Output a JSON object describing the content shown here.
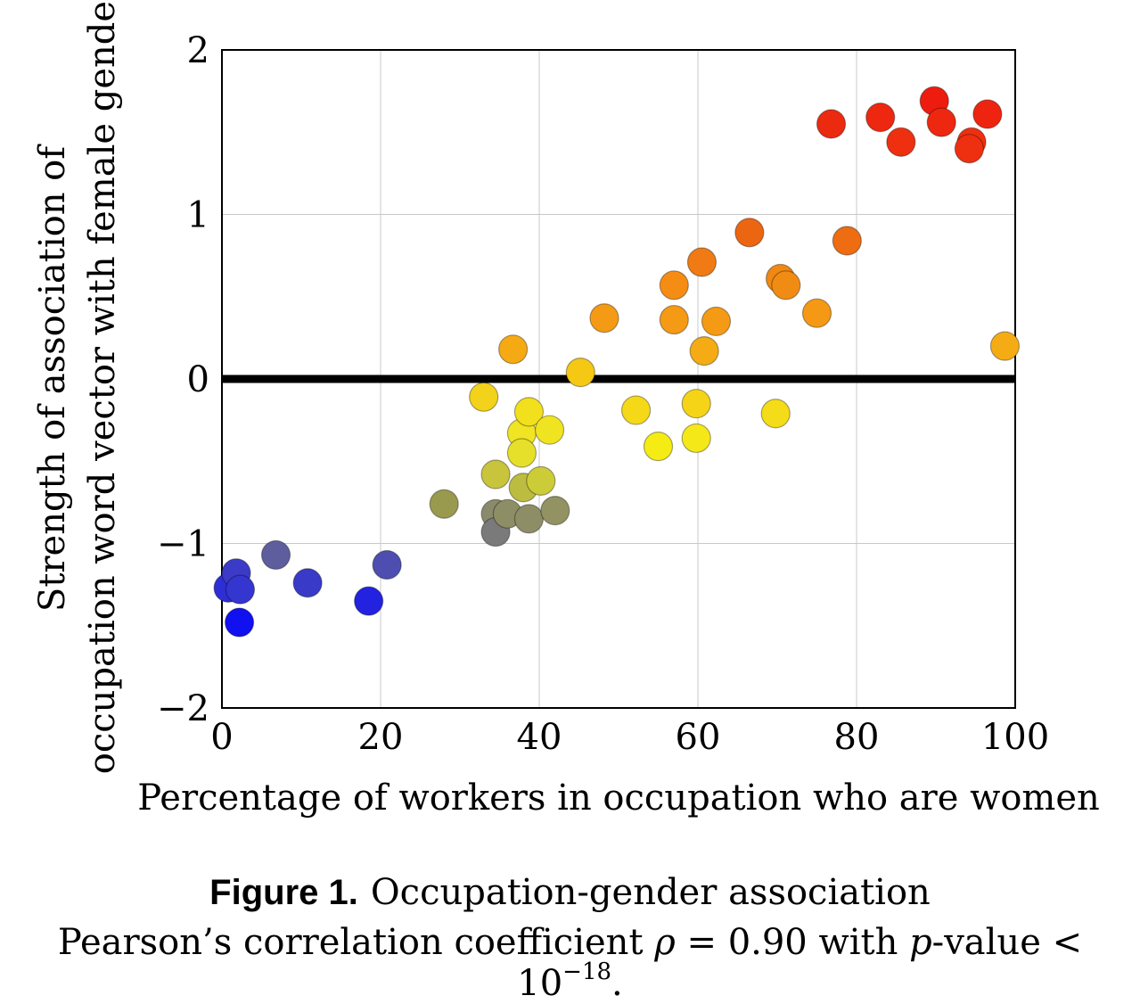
{
  "chart_data": {
    "type": "scatter",
    "xlabel": "Percentage of workers in occupation who are women",
    "ylabel_line1": "Strength of association of",
    "ylabel_line2": "occupation word vector with female gender",
    "xlim": [
      0,
      100
    ],
    "ylim": [
      -2,
      2
    ],
    "xticks": [
      0,
      20,
      40,
      60,
      80,
      100
    ],
    "yticks": [
      -2,
      -1,
      0,
      1,
      2
    ],
    "xtick_labels": [
      "0",
      "20",
      "40",
      "60",
      "80",
      "100"
    ],
    "ytick_labels": [
      "−2",
      "−1",
      "0",
      "1",
      "2"
    ],
    "grid": true,
    "reference_line_y": 0,
    "points": [
      {
        "x": 0.8,
        "y": -1.27,
        "color": "#2e2ed6"
      },
      {
        "x": 1.8,
        "y": -1.18,
        "color": "#3b3bc8"
      },
      {
        "x": 2.3,
        "y": -1.28,
        "color": "#3535d0"
      },
      {
        "x": 2.2,
        "y": -1.48,
        "color": "#1010f0"
      },
      {
        "x": 6.8,
        "y": -1.07,
        "color": "#5e5e9e"
      },
      {
        "x": 10.8,
        "y": -1.24,
        "color": "#3a3ac8"
      },
      {
        "x": 18.5,
        "y": -1.35,
        "color": "#2222e0"
      },
      {
        "x": 20.8,
        "y": -1.13,
        "color": "#4e4eb0"
      },
      {
        "x": 28.0,
        "y": -0.76,
        "color": "#9a9a4e"
      },
      {
        "x": 33.0,
        "y": -0.11,
        "color": "#f2d21a"
      },
      {
        "x": 34.5,
        "y": -0.58,
        "color": "#c8c43c"
      },
      {
        "x": 34.5,
        "y": -0.82,
        "color": "#8a8a6c"
      },
      {
        "x": 34.5,
        "y": -0.93,
        "color": "#7a7a7a"
      },
      {
        "x": 36.0,
        "y": -0.82,
        "color": "#8e8e66"
      },
      {
        "x": 36.7,
        "y": 0.18,
        "color": "#f5aa14"
      },
      {
        "x": 37.8,
        "y": -0.33,
        "color": "#f0e424"
      },
      {
        "x": 37.8,
        "y": -0.45,
        "color": "#e6e02a"
      },
      {
        "x": 38.0,
        "y": -0.66,
        "color": "#bcbc40"
      },
      {
        "x": 38.7,
        "y": -0.2,
        "color": "#f2e01c"
      },
      {
        "x": 38.7,
        "y": -0.85,
        "color": "#8e8e66"
      },
      {
        "x": 40.2,
        "y": -0.62,
        "color": "#cccc38"
      },
      {
        "x": 41.3,
        "y": -0.31,
        "color": "#f0e420"
      },
      {
        "x": 42.0,
        "y": -0.8,
        "color": "#929262"
      },
      {
        "x": 45.2,
        "y": 0.04,
        "color": "#f5c814"
      },
      {
        "x": 48.2,
        "y": 0.37,
        "color": "#f59a14"
      },
      {
        "x": 52.2,
        "y": -0.19,
        "color": "#f5d818"
      },
      {
        "x": 55.0,
        "y": -0.41,
        "color": "#f5ec14"
      },
      {
        "x": 57.0,
        "y": 0.57,
        "color": "#f58c14"
      },
      {
        "x": 57.0,
        "y": 0.36,
        "color": "#f59a14"
      },
      {
        "x": 59.8,
        "y": -0.15,
        "color": "#f5d418"
      },
      {
        "x": 59.8,
        "y": -0.36,
        "color": "#f5e818"
      },
      {
        "x": 60.5,
        "y": 0.71,
        "color": "#f07a14"
      },
      {
        "x": 60.8,
        "y": 0.17,
        "color": "#f5ac14"
      },
      {
        "x": 62.3,
        "y": 0.35,
        "color": "#f59a14"
      },
      {
        "x": 66.5,
        "y": 0.89,
        "color": "#ec6612"
      },
      {
        "x": 69.8,
        "y": -0.21,
        "color": "#f5dc18"
      },
      {
        "x": 70.4,
        "y": 0.61,
        "color": "#f08814"
      },
      {
        "x": 71.1,
        "y": 0.57,
        "color": "#f08c14"
      },
      {
        "x": 75.0,
        "y": 0.4,
        "color": "#f59814"
      },
      {
        "x": 76.8,
        "y": 1.55,
        "color": "#ec2a10"
      },
      {
        "x": 78.8,
        "y": 0.84,
        "color": "#ee6c12"
      },
      {
        "x": 83.0,
        "y": 1.59,
        "color": "#ee2810"
      },
      {
        "x": 85.6,
        "y": 1.44,
        "color": "#ee3010"
      },
      {
        "x": 89.8,
        "y": 1.69,
        "color": "#ee1c0e"
      },
      {
        "x": 90.7,
        "y": 1.56,
        "color": "#ee2810"
      },
      {
        "x": 94.5,
        "y": 1.44,
        "color": "#ee3010"
      },
      {
        "x": 94.2,
        "y": 1.4,
        "color": "#ee3010"
      },
      {
        "x": 96.5,
        "y": 1.61,
        "color": "#ee2410"
      },
      {
        "x": 98.7,
        "y": 0.2,
        "color": "#f5ac14"
      }
    ]
  },
  "caption": {
    "label": "Figure 1.",
    "title": "Occupation-gender association",
    "line2_prefix": "Pearson’s correlation coefficient ",
    "rho_symbol": "ρ",
    "line2_middle": " = 0.90 with ",
    "p_symbol": "p",
    "line2_suffix": "-value < 10",
    "exponent": "−18",
    "line2_end": "."
  }
}
